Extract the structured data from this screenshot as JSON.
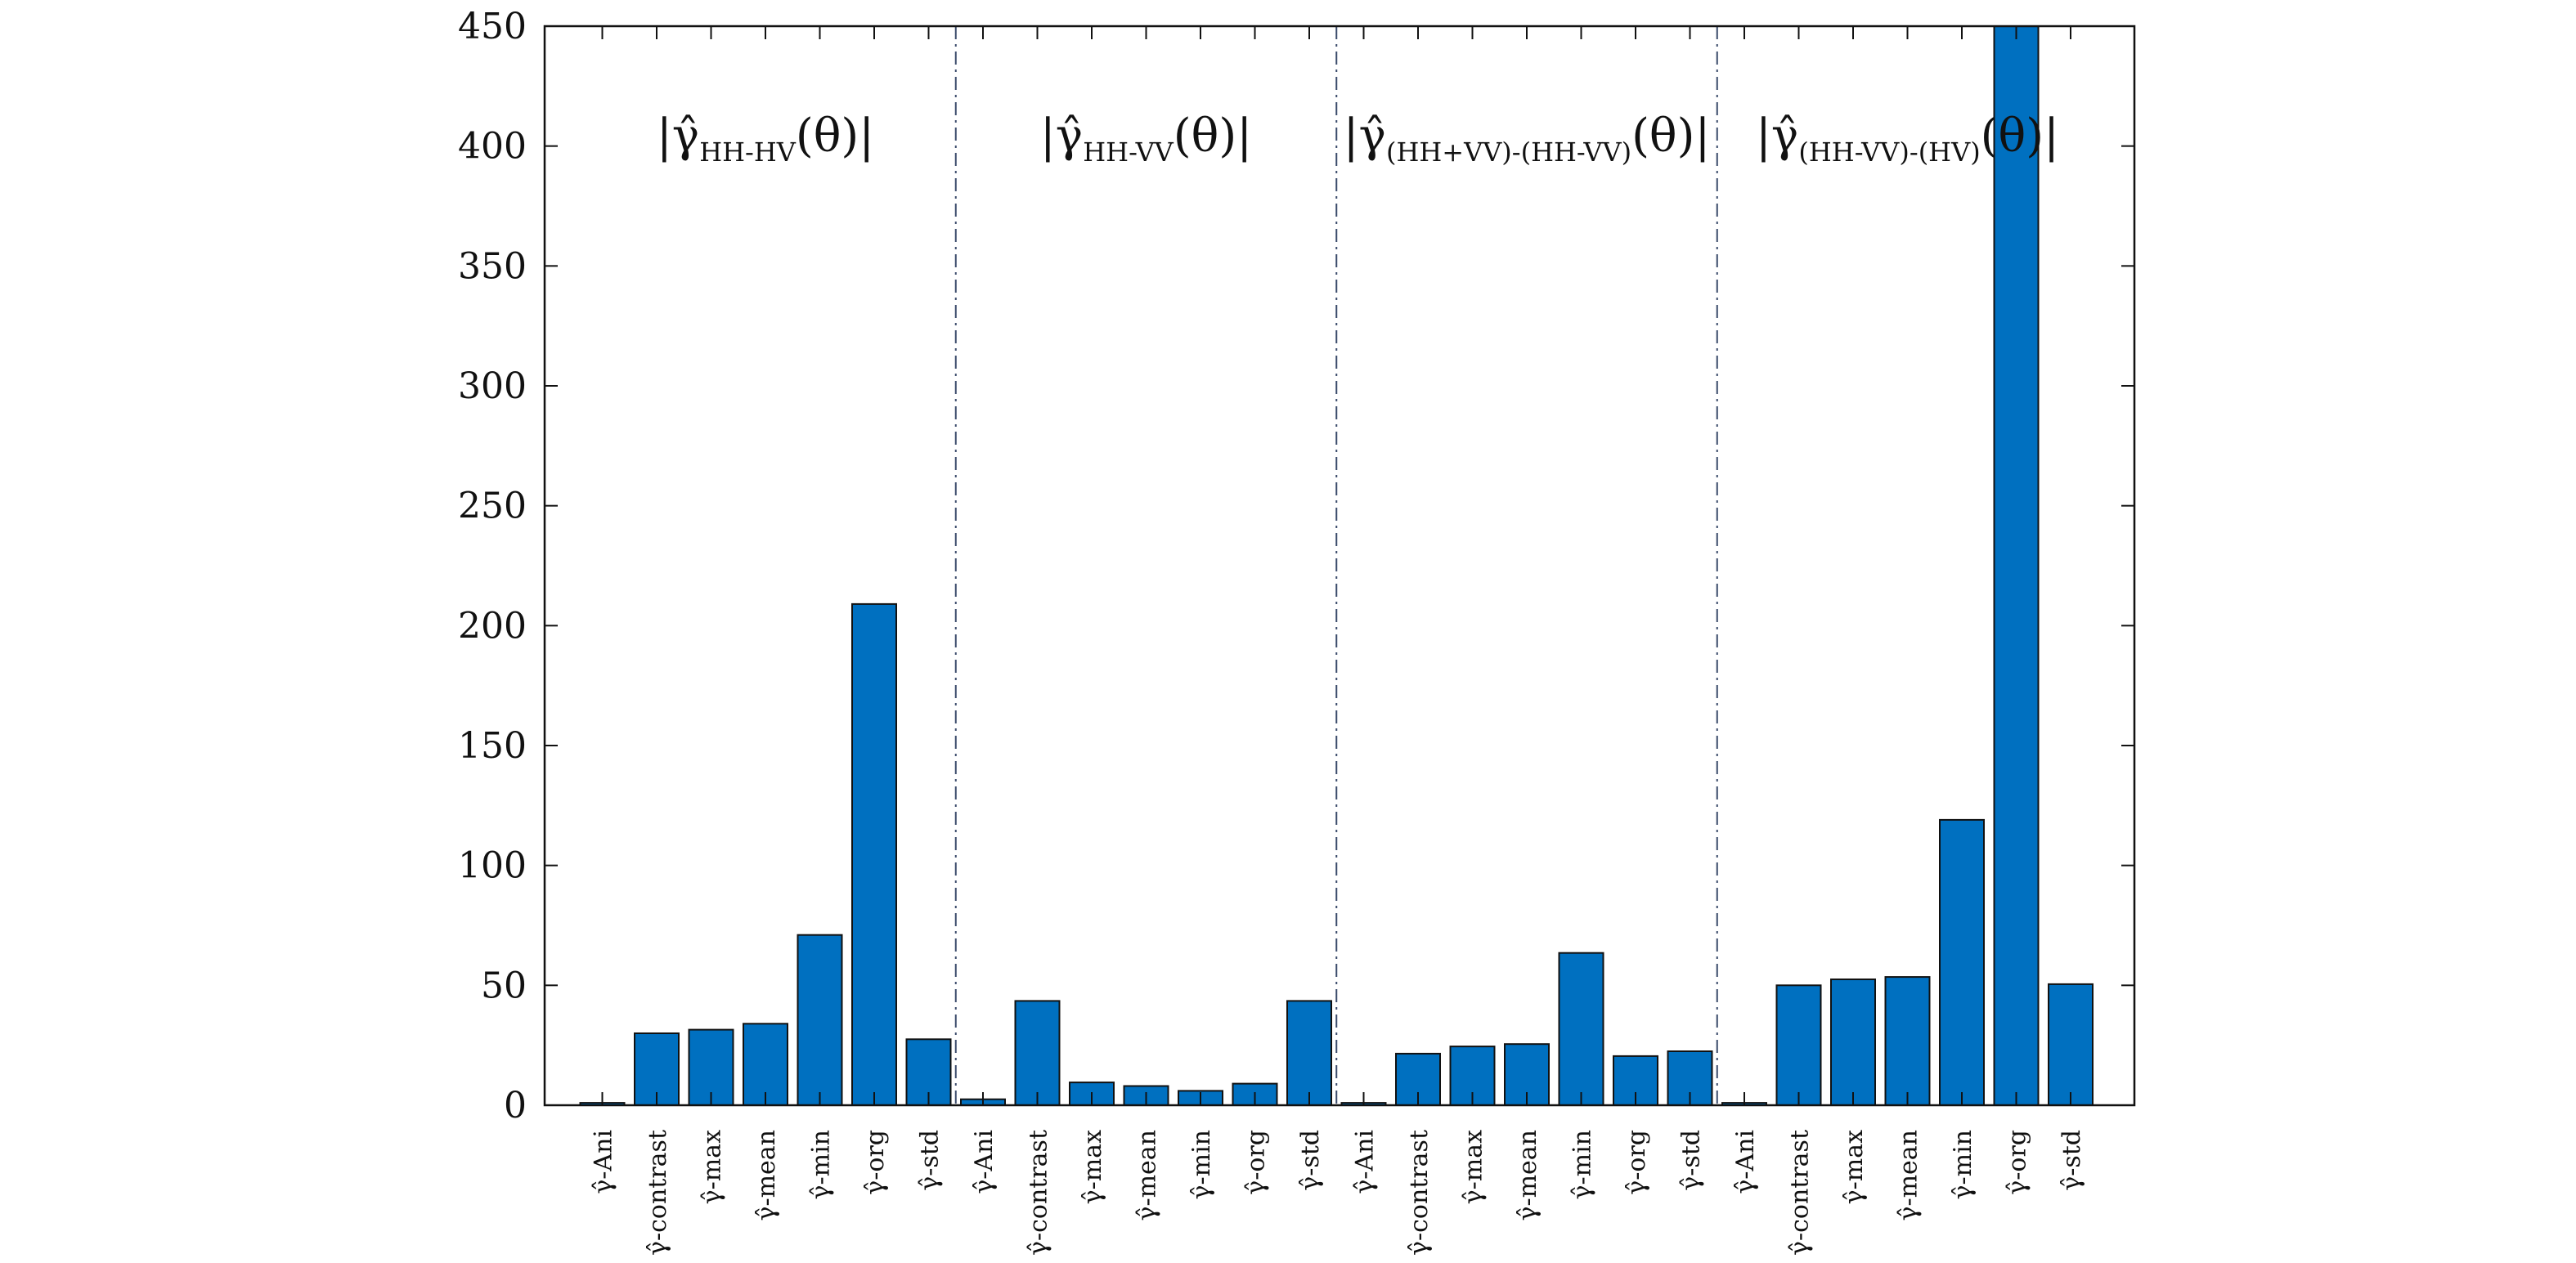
{
  "chart_data": {
    "type": "bar",
    "ylim": [
      0,
      450
    ],
    "yticks": [
      0,
      50,
      100,
      150,
      200,
      250,
      300,
      350,
      400,
      450
    ],
    "grid": false,
    "legend": "none",
    "bar_color": "#0070C0",
    "bar_edge_color": "#111111",
    "separator_color": "#3a4a6a",
    "groups": [
      {
        "label_prefix": "|γ̂",
        "label_sub": "HH-HV",
        "label_suffix": "(θ)|",
        "categories": [
          "γ̂-Ani",
          "γ̂-contrast",
          "γ̂-max",
          "γ̂-mean",
          "γ̂-min",
          "γ̂-org",
          "γ̂-std"
        ],
        "values": [
          1,
          30,
          31.5,
          34,
          71,
          209,
          27.5
        ]
      },
      {
        "label_prefix": "|γ̂",
        "label_sub": "HH-VV",
        "label_suffix": "(θ)|",
        "categories": [
          "γ̂-Ani",
          "γ̂-contrast",
          "γ̂-max",
          "γ̂-mean",
          "γ̂-min",
          "γ̂-org",
          "γ̂-std"
        ],
        "values": [
          2.5,
          43.5,
          9.5,
          8,
          6,
          9,
          43.5
        ]
      },
      {
        "label_prefix": "|γ̂",
        "label_sub": "(HH+VV)-(HH-VV)",
        "label_suffix": "(θ)|",
        "categories": [
          "γ̂-Ani",
          "γ̂-contrast",
          "γ̂-max",
          "γ̂-mean",
          "γ̂-min",
          "γ̂-org",
          "γ̂-std"
        ],
        "values": [
          1,
          21.5,
          24.5,
          25.5,
          63.5,
          20.5,
          22.5
        ]
      },
      {
        "label_prefix": "|γ̂",
        "label_sub": "(HH-VV)-(HV)",
        "label_suffix": "(θ)|",
        "categories": [
          "γ̂-Ani",
          "γ̂-contrast",
          "γ̂-max",
          "γ̂-mean",
          "γ̂-min",
          "γ̂-org",
          "γ̂-std"
        ],
        "values": [
          1,
          50,
          52.5,
          53.5,
          119,
          450,
          50.5
        ]
      }
    ]
  }
}
